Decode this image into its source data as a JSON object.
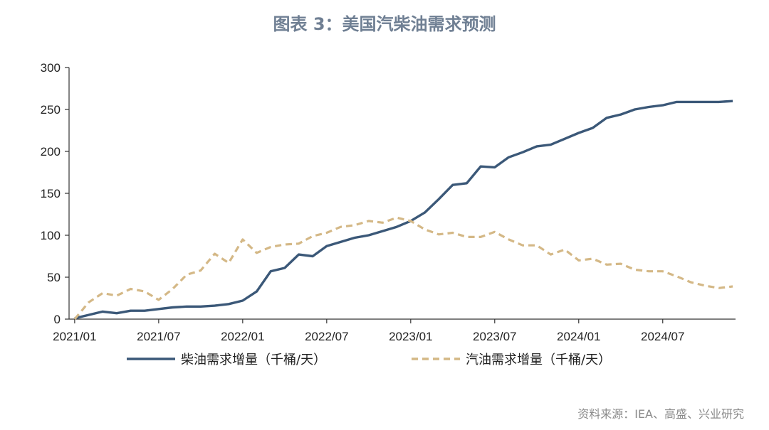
{
  "chart_data": {
    "type": "line",
    "title": "图表 3：美国汽柴油需求预测",
    "source": "资料来源：IEA、高盛、兴业研究",
    "y_ticks": [
      "0",
      "50",
      "100",
      "150",
      "200",
      "250",
      "300"
    ],
    "ylim": [
      0,
      300
    ],
    "x_ticks": [
      "2021/01",
      "2021/07",
      "2022/01",
      "2022/07",
      "2023/01",
      "2023/07",
      "2024/01",
      "2024/07"
    ],
    "x_start": "2021/01",
    "x_end": "2024/12",
    "legend_position": "bottom",
    "grid": false,
    "series": [
      {
        "name": "柴油需求增量（千桶/天）",
        "style": "solid",
        "color": "#3b5878",
        "x": [
          "2021/01",
          "2021/02",
          "2021/03",
          "2021/04",
          "2021/05",
          "2021/06",
          "2021/07",
          "2021/08",
          "2021/09",
          "2021/10",
          "2021/11",
          "2021/12",
          "2022/01",
          "2022/02",
          "2022/03",
          "2022/04",
          "2022/05",
          "2022/06",
          "2022/07",
          "2022/08",
          "2022/09",
          "2022/10",
          "2022/11",
          "2022/12",
          "2023/01",
          "2023/02",
          "2023/03",
          "2023/04",
          "2023/05",
          "2023/06",
          "2023/07",
          "2023/08",
          "2023/09",
          "2023/10",
          "2023/11",
          "2023/12",
          "2024/01",
          "2024/02",
          "2024/03",
          "2024/04",
          "2024/05",
          "2024/06",
          "2024/07",
          "2024/08",
          "2024/09",
          "2024/10",
          "2024/11",
          "2024/12"
        ],
        "values": [
          1,
          5,
          9,
          7,
          10,
          10,
          12,
          14,
          15,
          15,
          16,
          18,
          22,
          33,
          57,
          61,
          77,
          75,
          87,
          92,
          97,
          100,
          105,
          110,
          117,
          127,
          143,
          160,
          162,
          182,
          181,
          193,
          199,
          206,
          208,
          215,
          222,
          228,
          240,
          244,
          250,
          253,
          255,
          259,
          259,
          259,
          259,
          260
        ]
      },
      {
        "name": "汽油需求增量（千桶/天）",
        "style": "dashed",
        "color": "#d4b886",
        "x": [
          "2021/01",
          "2021/02",
          "2021/03",
          "2021/04",
          "2021/05",
          "2021/06",
          "2021/07",
          "2021/08",
          "2021/09",
          "2021/10",
          "2021/11",
          "2021/12",
          "2022/01",
          "2022/02",
          "2022/03",
          "2022/04",
          "2022/05",
          "2022/06",
          "2022/07",
          "2022/08",
          "2022/09",
          "2022/10",
          "2022/11",
          "2022/12",
          "2023/01",
          "2023/02",
          "2023/03",
          "2023/04",
          "2023/05",
          "2023/06",
          "2023/07",
          "2023/08",
          "2023/09",
          "2023/10",
          "2023/11",
          "2023/12",
          "2024/01",
          "2024/02",
          "2024/03",
          "2024/04",
          "2024/05",
          "2024/06",
          "2024/07",
          "2024/08",
          "2024/09",
          "2024/10",
          "2024/11",
          "2024/12"
        ],
        "values": [
          0,
          20,
          31,
          28,
          36,
          33,
          23,
          36,
          53,
          58,
          78,
          67,
          95,
          79,
          86,
          89,
          90,
          99,
          103,
          110,
          112,
          117,
          115,
          121,
          117,
          107,
          101,
          103,
          98,
          98,
          104,
          95,
          88,
          88,
          77,
          83,
          70,
          72,
          65,
          66,
          59,
          57,
          57,
          51,
          44,
          40,
          37,
          39
        ]
      }
    ]
  }
}
